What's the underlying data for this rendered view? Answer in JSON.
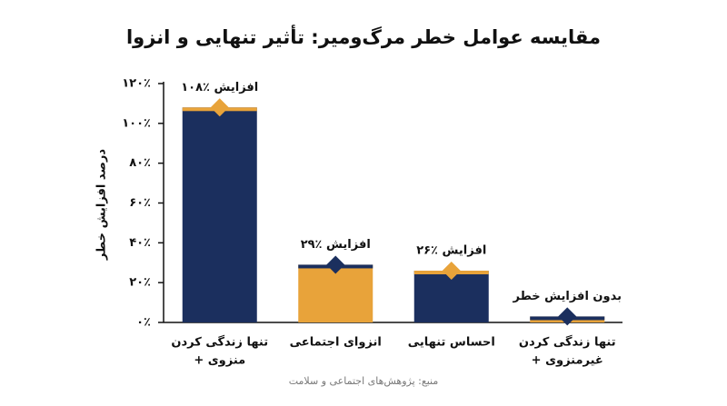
{
  "chart_data": {
    "type": "bar",
    "title": "مقایسه عوامل خطر مرگ‌ومیر: تأثیر تنهایی و انزوا",
    "y_label": "درصد افزایش خطر",
    "source": "منبع: پژوهش‌های اجتماعی و سلامت",
    "categories": [
      [
        "تنها زندگی کردن",
        "+ منزوی"
      ],
      [
        "انزوای اجتماعی"
      ],
      [
        "احساس تنهایی"
      ],
      [
        "تنها زندگی کردن",
        "+ غیرمنزوی"
      ]
    ],
    "values": [
      108,
      29,
      26,
      3
    ],
    "value_labels": [
      "۱۰۸٪ افزایش",
      "۲۹٪ افزایش",
      "۲۶٪ افزایش",
      "بدون افزایش خطر"
    ],
    "colors": [
      "#1b2f5e",
      "#e8a33a",
      "#1b2f5e",
      "#e8a33a"
    ],
    "accent_colors": [
      "#e8a33a",
      "#1b2f5e",
      "#e8a33a",
      "#1b2f5e"
    ],
    "ylim": [
      0,
      120
    ],
    "yticks": [
      {
        "value": 0,
        "label": "۰٪"
      },
      {
        "value": 20,
        "label": "۲۰٪"
      },
      {
        "value": 40,
        "label": "۴۰٪"
      },
      {
        "value": 60,
        "label": "۶۰٪"
      },
      {
        "value": 80,
        "label": "۸۰٪"
      },
      {
        "value": 100,
        "label": "۱۰۰٪"
      },
      {
        "value": 120,
        "label": "۱۲۰٪"
      }
    ]
  }
}
